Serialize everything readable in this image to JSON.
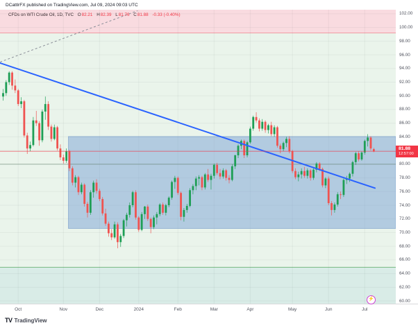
{
  "header": {
    "text": "DCattlrFX published on TradingView.com, Jul 09, 2024 09:03 UTC"
  },
  "legend": {
    "symbol": "CFDs on WTI Crude Oil, 1D, TVC",
    "o_label": "O",
    "o_value": "82.21",
    "h_label": "H",
    "h_value": "82.39",
    "l_label": "L",
    "l_value": "81.76",
    "c_label": "C",
    "c_value": "81.88",
    "change": "-0.33 (-0.40%)"
  },
  "price_tag": {
    "price": "81.88",
    "time": "12:57:00",
    "color": "#f23645"
  },
  "footer": {
    "logo_mark": "TV",
    "logo_text": "TradingView"
  },
  "icons": {
    "flash": "⚡"
  },
  "chart_data": {
    "type": "candlestick",
    "title": "CFDs on WTI Crude Oil, 1D, TVC",
    "ylim": [
      59.6,
      102.6
    ],
    "y_grid_step": 2,
    "x_spacing": 4.34,
    "colors": {
      "up": "#1e9e55",
      "down": "#ef5350",
      "grid": "rgba(42,46,57,0.055)"
    },
    "y_ticks": [
      "102.00",
      "100.00",
      "98.00",
      "96.00",
      "94.00",
      "92.00",
      "90.00",
      "88.00",
      "86.00",
      "84.00",
      "80.00",
      "78.00",
      "76.00",
      "74.00",
      "72.00",
      "70.00",
      "68.00",
      "66.00",
      "64.00",
      "62.00",
      "60.00"
    ],
    "x_ticks": [
      {
        "i": 5,
        "label": "Oct"
      },
      {
        "i": 20,
        "label": "Nov"
      },
      {
        "i": 32,
        "label": "Dec"
      },
      {
        "i": 45,
        "label": "2024"
      },
      {
        "i": 58,
        "label": "Feb"
      },
      {
        "i": 70,
        "label": "Mar"
      },
      {
        "i": 82,
        "label": "Apr"
      },
      {
        "i": 96,
        "label": "May"
      },
      {
        "i": 108,
        "label": "Jun"
      },
      {
        "i": 120,
        "label": "Jul"
      }
    ],
    "zones": [
      {
        "name": "resistance-zone",
        "from_price": 102.6,
        "to_price": 99.15,
        "fill": "#f9dbe0",
        "border_color": "#ec7680"
      },
      {
        "name": "main-zone",
        "from_price": 99.15,
        "to_price": 64.9,
        "fill": "#eaf4eb",
        "border_color": "#5aaa62"
      },
      {
        "name": "support-zone",
        "from_price": 64.9,
        "to_price": 59.6,
        "fill": "#d9ece7",
        "border_color": null
      }
    ],
    "box": {
      "name": "consolidation-box",
      "from_index": 22,
      "from_price": 84.05,
      "to_price": 70.6,
      "fill": "rgba(110,152,210,0.45)",
      "stroke": "rgba(80,125,190,0.5)"
    },
    "trendline": {
      "x1_index": -1,
      "y1_price": 94.8,
      "x2_index": 123.4,
      "y2_price": 76.5,
      "color": "#2962ff",
      "width": 2
    },
    "dashed_line": {
      "x1_index": -1,
      "y1_price": 94.95,
      "x2_index": 44.6,
      "y2_price": 102.45,
      "color": "#8a8e98",
      "dash": "3,3"
    },
    "price_line": {
      "price": 81.88,
      "color": "rgba(242,54,69,0.6)"
    },
    "level_line": {
      "price": 80.0,
      "color": "rgba(94,125,105,0.55)"
    },
    "candles": [
      [
        89.9,
        91.0,
        89.3,
        90.4
      ],
      [
        90.4,
        92.3,
        90.0,
        92.0
      ],
      [
        92.0,
        93.6,
        91.6,
        93.4
      ],
      [
        93.4,
        93.6,
        90.9,
        91.5
      ],
      [
        91.5,
        92.4,
        90.4,
        90.8
      ],
      [
        90.8,
        91.0,
        88.5,
        88.8
      ],
      [
        88.8,
        89.8,
        88.2,
        89.2
      ],
      [
        89.2,
        89.4,
        83.9,
        84.2
      ],
      [
        84.2,
        84.6,
        81.5,
        82.3
      ],
      [
        82.3,
        83.3,
        81.9,
        82.8
      ],
      [
        82.8,
        86.9,
        82.6,
        86.4
      ],
      [
        86.4,
        87.8,
        85.6,
        86.0
      ],
      [
        86.0,
        86.3,
        82.7,
        83.5
      ],
      [
        83.5,
        88.0,
        83.2,
        87.7
      ],
      [
        87.7,
        89.9,
        86.5,
        88.8
      ],
      [
        88.8,
        89.2,
        85.0,
        85.5
      ],
      [
        85.5,
        85.8,
        83.3,
        83.7
      ],
      [
        83.7,
        85.8,
        83.5,
        85.4
      ],
      [
        85.4,
        85.6,
        82.0,
        82.3
      ],
      [
        82.3,
        82.9,
        80.6,
        81.0
      ],
      [
        81.0,
        81.4,
        80.1,
        80.5
      ],
      [
        80.5,
        82.3,
        80.2,
        81.9
      ],
      [
        81.9,
        82.1,
        79.0,
        79.4
      ],
      [
        79.4,
        79.7,
        76.9,
        77.3
      ],
      [
        77.3,
        78.4,
        76.6,
        78.1
      ],
      [
        78.1,
        78.3,
        75.5,
        75.9
      ],
      [
        75.9,
        77.3,
        75.6,
        77.0
      ],
      [
        77.0,
        77.2,
        73.8,
        74.2
      ],
      [
        74.2,
        74.5,
        72.2,
        72.9
      ],
      [
        72.9,
        76.2,
        72.6,
        75.9
      ],
      [
        75.9,
        77.6,
        75.1,
        77.3
      ],
      [
        77.3,
        77.8,
        75.7,
        76.1
      ],
      [
        76.1,
        76.4,
        74.6,
        74.9
      ],
      [
        74.9,
        75.2,
        72.5,
        72.8
      ],
      [
        72.8,
        73.5,
        71.0,
        71.3
      ],
      [
        71.3,
        71.6,
        69.4,
        69.9
      ],
      [
        69.9,
        70.5,
        68.9,
        69.3
      ],
      [
        69.3,
        71.6,
        69.1,
        71.2
      ],
      [
        71.2,
        71.5,
        67.7,
        68.6
      ],
      [
        68.6,
        69.8,
        67.9,
        69.5
      ],
      [
        69.5,
        72.0,
        69.2,
        71.8
      ],
      [
        71.8,
        72.9,
        70.9,
        72.6
      ],
      [
        72.6,
        74.4,
        72.2,
        74.0
      ],
      [
        74.0,
        76.1,
        73.7,
        75.9
      ],
      [
        75.9,
        76.2,
        71.9,
        72.2
      ],
      [
        72.2,
        72.4,
        70.1,
        70.4
      ],
      [
        70.4,
        73.0,
        70.2,
        72.7
      ],
      [
        72.7,
        73.9,
        72.0,
        73.8
      ],
      [
        73.8,
        74.1,
        71.7,
        72.0
      ],
      [
        72.0,
        72.2,
        69.9,
        70.8
      ],
      [
        70.8,
        72.5,
        70.5,
        72.2
      ],
      [
        72.2,
        73.0,
        71.2,
        72.7
      ],
      [
        72.7,
        74.3,
        72.4,
        74.1
      ],
      [
        74.1,
        74.4,
        72.6,
        72.9
      ],
      [
        72.9,
        74.2,
        72.5,
        74.0
      ],
      [
        74.0,
        75.3,
        73.7,
        75.1
      ],
      [
        75.1,
        77.6,
        74.8,
        77.4
      ],
      [
        77.4,
        78.3,
        76.4,
        78.0
      ],
      [
        78.0,
        78.2,
        75.5,
        75.8
      ],
      [
        75.8,
        76.0,
        71.8,
        72.3
      ],
      [
        72.3,
        73.6,
        71.6,
        73.3
      ],
      [
        73.3,
        74.2,
        72.9,
        73.9
      ],
      [
        73.9,
        76.5,
        73.7,
        76.2
      ],
      [
        76.2,
        77.1,
        75.6,
        76.8
      ],
      [
        76.8,
        78.2,
        76.2,
        77.9
      ],
      [
        77.9,
        78.4,
        76.9,
        78.1
      ],
      [
        78.1,
        78.3,
        76.2,
        76.6
      ],
      [
        76.6,
        78.7,
        76.3,
        78.5
      ],
      [
        78.5,
        79.3,
        77.4,
        77.7
      ],
      [
        77.7,
        78.6,
        76.3,
        78.3
      ],
      [
        78.3,
        80.1,
        77.9,
        79.9
      ],
      [
        79.9,
        80.2,
        78.4,
        78.7
      ],
      [
        78.7,
        79.3,
        77.8,
        78.2
      ],
      [
        78.2,
        79.4,
        77.9,
        79.1
      ],
      [
        79.1,
        79.3,
        77.6,
        78.0
      ],
      [
        78.0,
        78.4,
        77.2,
        77.7
      ],
      [
        77.7,
        80.0,
        77.5,
        79.7
      ],
      [
        79.7,
        81.4,
        79.3,
        81.3
      ],
      [
        81.3,
        82.9,
        80.9,
        82.7
      ],
      [
        82.7,
        83.6,
        82.2,
        83.4
      ],
      [
        83.4,
        83.6,
        80.9,
        81.3
      ],
      [
        81.3,
        83.4,
        81.0,
        83.2
      ],
      [
        83.2,
        85.5,
        83.0,
        85.2
      ],
      [
        85.2,
        87.1,
        84.9,
        86.9
      ],
      [
        86.9,
        87.6,
        86.1,
        86.4
      ],
      [
        86.4,
        86.7,
        84.8,
        85.2
      ],
      [
        85.2,
        86.6,
        84.9,
        86.2
      ],
      [
        86.2,
        86.4,
        84.6,
        85.0
      ],
      [
        85.0,
        85.9,
        84.5,
        85.7
      ],
      [
        85.7,
        86.2,
        84.1,
        84.4
      ],
      [
        84.4,
        85.7,
        84.0,
        85.4
      ],
      [
        85.4,
        85.6,
        82.4,
        82.7
      ],
      [
        82.7,
        83.0,
        81.6,
        82.2
      ],
      [
        82.2,
        83.3,
        81.9,
        83.1
      ],
      [
        83.1,
        84.0,
        82.5,
        83.7
      ],
      [
        83.7,
        84.1,
        81.6,
        81.9
      ],
      [
        81.9,
        82.1,
        78.7,
        79.0
      ],
      [
        79.0,
        79.4,
        77.8,
        78.1
      ],
      [
        78.1,
        78.9,
        77.5,
        78.5
      ],
      [
        78.5,
        79.4,
        77.9,
        79.0
      ],
      [
        79.0,
        79.6,
        78.0,
        78.3
      ],
      [
        78.3,
        79.4,
        77.9,
        79.1
      ],
      [
        79.1,
        79.3,
        77.6,
        78.0
      ],
      [
        78.0,
        79.5,
        77.7,
        79.2
      ],
      [
        79.2,
        80.3,
        78.8,
        80.1
      ],
      [
        80.1,
        80.3,
        79.0,
        79.3
      ],
      [
        79.3,
        79.5,
        76.6,
        76.9
      ],
      [
        76.9,
        78.1,
        76.5,
        77.9
      ],
      [
        77.9,
        78.2,
        74.0,
        74.3
      ],
      [
        74.3,
        74.6,
        72.5,
        73.3
      ],
      [
        73.3,
        74.4,
        72.9,
        74.1
      ],
      [
        74.1,
        75.9,
        73.8,
        75.6
      ],
      [
        75.6,
        76.0,
        74.9,
        75.5
      ],
      [
        75.5,
        77.9,
        75.2,
        77.7
      ],
      [
        77.7,
        78.3,
        77.1,
        77.9
      ],
      [
        77.9,
        78.8,
        77.4,
        78.6
      ],
      [
        78.6,
        80.5,
        78.2,
        80.3
      ],
      [
        80.3,
        81.8,
        79.9,
        81.6
      ],
      [
        81.6,
        81.9,
        80.4,
        80.7
      ],
      [
        80.7,
        81.9,
        80.5,
        81.7
      ],
      [
        81.7,
        83.6,
        81.4,
        83.4
      ],
      [
        83.4,
        84.4,
        82.6,
        83.9
      ],
      [
        83.9,
        84.1,
        82.0,
        82.3
      ],
      [
        82.21,
        82.39,
        81.76,
        81.88
      ]
    ]
  }
}
